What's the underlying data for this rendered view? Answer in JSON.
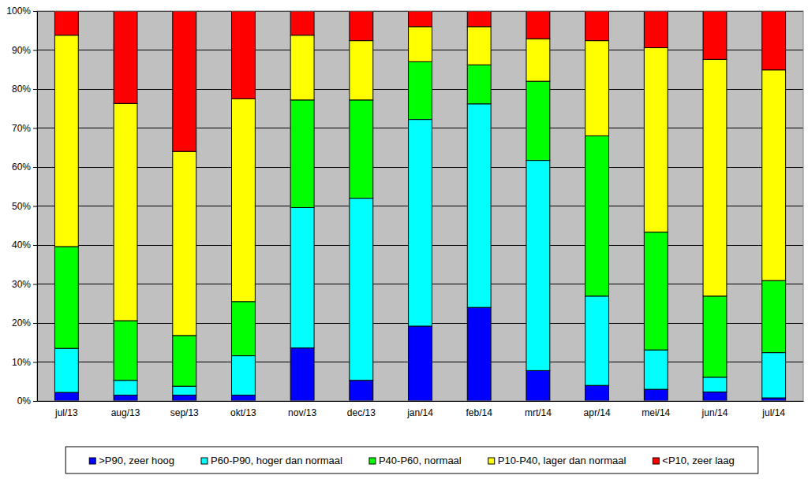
{
  "chart_data": {
    "type": "bar",
    "stacked": true,
    "grid": true,
    "legend": "bottom",
    "categories": [
      "jul/13",
      "aug/13",
      "sep/13",
      "okt/13",
      "nov/13",
      "dec/13",
      "jan/14",
      "feb/14",
      "mrt/14",
      "apr/14",
      "mei/14",
      "jun/14",
      "jul/14"
    ],
    "series": [
      {
        "name": ">P90, zeer hoog",
        "color": "#0000ff",
        "values": [
          2.2,
          1.5,
          1.5,
          1.5,
          13.6,
          5.3,
          19.2,
          24.0,
          7.8,
          4.0,
          3.0,
          2.3,
          0.8
        ]
      },
      {
        "name": "P60-P90, hoger dan normaal",
        "color": "#00ffff",
        "values": [
          11.3,
          3.8,
          2.3,
          10.1,
          36.0,
          46.7,
          53.0,
          52.2,
          53.9,
          22.9,
          10.1,
          3.8,
          11.6
        ]
      },
      {
        "name": "P40-P60, normaal",
        "color": "#00ff00",
        "values": [
          26.1,
          15.3,
          13.0,
          13.9,
          27.6,
          25.2,
          14.8,
          10.0,
          20.3,
          41.1,
          30.2,
          20.8,
          18.5
        ]
      },
      {
        "name": "P10-P40, lager dan normaal",
        "color": "#ffff00",
        "values": [
          54.2,
          55.7,
          47.2,
          52.0,
          16.6,
          15.2,
          9.0,
          9.8,
          10.9,
          24.4,
          47.3,
          60.7,
          54.0
        ]
      },
      {
        "name": "<P10, zeer laag",
        "color": "#ff0000",
        "values": [
          6.2,
          23.7,
          36.0,
          22.5,
          6.2,
          7.6,
          4.0,
          4.0,
          7.1,
          7.6,
          9.4,
          12.4,
          15.1
        ]
      }
    ],
    "ylim": [
      0,
      100
    ],
    "yticks": [
      {
        "value": 0,
        "label": "0%"
      },
      {
        "value": 10,
        "label": "10%"
      },
      {
        "value": 20,
        "label": "20%"
      },
      {
        "value": 30,
        "label": "30%"
      },
      {
        "value": 40,
        "label": "40%"
      },
      {
        "value": 50,
        "label": "50%"
      },
      {
        "value": 60,
        "label": "60%"
      },
      {
        "value": 70,
        "label": "70%"
      },
      {
        "value": 80,
        "label": "80%"
      },
      {
        "value": 90,
        "label": "90%"
      },
      {
        "value": 100,
        "label": "100%"
      }
    ]
  }
}
